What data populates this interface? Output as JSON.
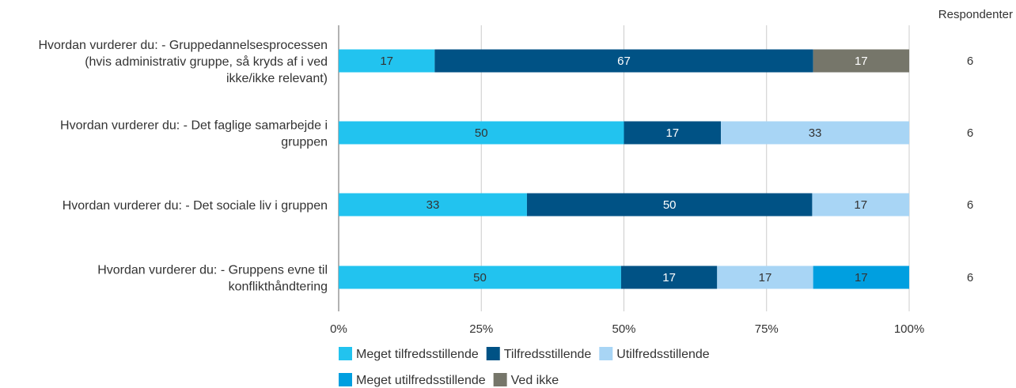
{
  "chart_data": {
    "type": "bar",
    "orientation": "horizontal",
    "stacked": true,
    "xlim": [
      0,
      100
    ],
    "grid": true,
    "ticks": [
      "0%",
      "25%",
      "50%",
      "75%",
      "100%"
    ],
    "categories": [
      [
        "Hvordan vurderer du: - Gruppedannelsesprocessen",
        "(hvis administrativ gruppe, så kryds af i ved",
        "ikke/ikke relevant)"
      ],
      [
        "Hvordan vurderer du: - Det faglige samarbejde i",
        "gruppen"
      ],
      [
        "Hvordan vurderer du: - Det sociale liv i gruppen"
      ],
      [
        "Hvordan vurderer du: - Gruppens evne til",
        "konflikthåndtering"
      ]
    ],
    "series": [
      {
        "name": "Meget tilfredsstillende",
        "color": "#22c3ef",
        "label_color": "#333333",
        "values": [
          17,
          50,
          33,
          50
        ]
      },
      {
        "name": "Tilfredsstillende",
        "color": "#005285",
        "label_color": "#ffffff",
        "values": [
          67,
          17,
          50,
          17
        ]
      },
      {
        "name": "Utilfredsstillende",
        "color": "#a8d5f5",
        "label_color": "#333333",
        "values": [
          0,
          33,
          17,
          17
        ]
      },
      {
        "name": "Meget utilfredsstillende",
        "color": "#009fe0",
        "label_color": "#333333",
        "values": [
          0,
          0,
          0,
          17
        ]
      },
      {
        "name": "Ved ikke",
        "color": "#76766a",
        "label_color": "#ffffff",
        "values": [
          17,
          0,
          0,
          0
        ]
      }
    ],
    "respondents_header": "Respondenter",
    "respondents": [
      6,
      6,
      6,
      6
    ],
    "legend_position": "bottom"
  }
}
